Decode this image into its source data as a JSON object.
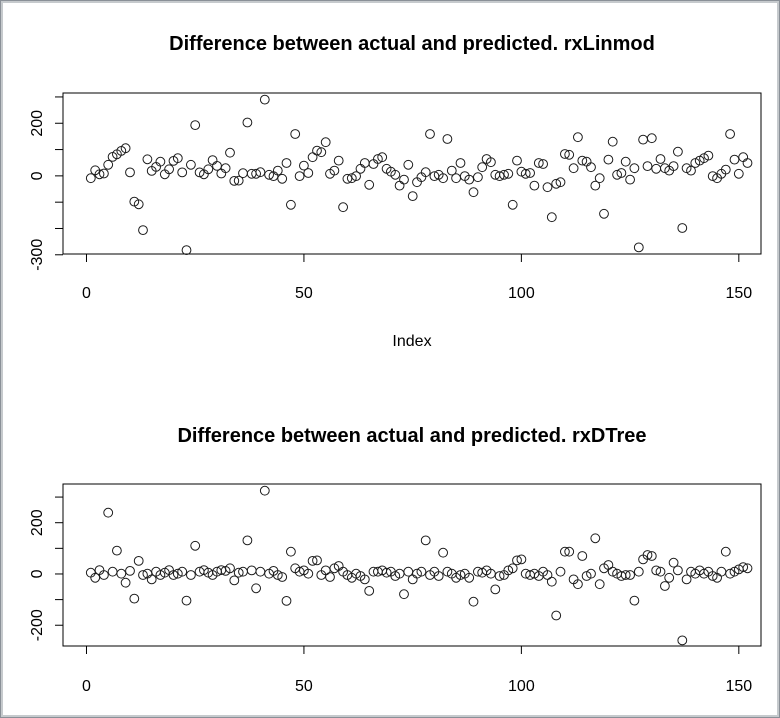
{
  "window": {
    "background": "#ffffff",
    "border_color": "#a6a6a6",
    "foreground": "#000000"
  },
  "chart_data": [
    {
      "type": "scatter",
      "title": "Difference between actual and predicted. rxLinmod",
      "xlabel": "Index",
      "ylabel": "",
      "marker": "open-circle",
      "marker_color": "#000000",
      "grid": false,
      "legend": "none",
      "xlim": [
        -5.4,
        155.1
      ],
      "ylim": [
        -297,
        315
      ],
      "x_ticks": [
        0,
        50,
        100,
        150
      ],
      "y_ticks": [
        -300,
        -200,
        -100,
        0,
        100,
        200,
        300
      ],
      "y_labeled_values": [
        -300,
        0,
        200
      ],
      "y_tick_labels_shown": [
        "-300",
        "0",
        "200"
      ],
      "x": [
        1,
        2,
        3,
        4,
        5,
        6,
        7,
        8,
        9,
        10,
        11,
        12,
        13,
        14,
        15,
        16,
        17,
        18,
        19,
        20,
        21,
        22,
        23,
        24,
        25,
        26,
        27,
        28,
        29,
        30,
        31,
        32,
        33,
        34,
        35,
        36,
        37,
        38,
        39,
        40,
        41,
        42,
        43,
        44,
        45,
        46,
        47,
        48,
        49,
        50,
        51,
        52,
        53,
        54,
        55,
        56,
        57,
        58,
        59,
        60,
        61,
        62,
        63,
        64,
        65,
        66,
        67,
        68,
        69,
        70,
        71,
        72,
        73,
        74,
        75,
        76,
        77,
        78,
        79,
        80,
        81,
        82,
        83,
        84,
        85,
        86,
        87,
        88,
        89,
        90,
        91,
        92,
        93,
        94,
        95,
        96,
        97,
        98,
        99,
        100,
        101,
        102,
        103,
        104,
        105,
        106,
        107,
        108,
        109,
        110,
        111,
        112,
        113,
        114,
        115,
        116,
        117,
        118,
        119,
        120,
        121,
        122,
        123,
        124,
        125,
        126,
        127,
        128,
        129,
        130,
        131,
        132,
        133,
        134,
        135,
        136,
        137,
        138,
        139,
        140,
        141,
        142,
        143,
        144,
        145,
        146,
        147,
        148,
        149,
        150,
        151,
        152
      ],
      "y": [
        -9,
        21,
        6,
        9,
        42,
        72,
        82,
        95,
        105,
        13,
        -98,
        -108,
        -206,
        63,
        19,
        34,
        54,
        6,
        25,
        57,
        67,
        13,
        -282,
        42,
        193,
        13,
        6,
        25,
        60,
        38,
        9,
        29,
        88,
        -19,
        -18,
        10,
        203,
        8,
        8,
        14,
        290,
        4,
        -1,
        20,
        -11,
        49,
        -110,
        159,
        -1,
        39,
        11,
        71,
        96,
        90,
        128,
        8,
        20,
        58,
        -119,
        -11,
        -9,
        -1,
        27,
        49,
        -34,
        45,
        64,
        71,
        27,
        16,
        4,
        -37,
        -14,
        42,
        -77,
        -24,
        -5,
        14,
        159,
        -1,
        4,
        -9,
        140,
        20,
        -9,
        49,
        -1,
        -14,
        -62,
        -5,
        33,
        64,
        52,
        4,
        -1,
        4,
        8,
        -110,
        58,
        16,
        8,
        11,
        -37,
        49,
        45,
        -43,
        -157,
        -30,
        -24,
        83,
        80,
        29,
        147,
        58,
        54,
        33,
        -37,
        -9,
        -144,
        62,
        130,
        4,
        11,
        54,
        -14,
        29,
        -272,
        138,
        37,
        143,
        27,
        64,
        29,
        20,
        37,
        92,
        -198,
        29,
        20,
        49,
        58,
        67,
        77,
        -1,
        -9,
        8,
        24,
        159,
        62,
        8,
        71,
        49
      ]
    },
    {
      "type": "scatter",
      "title": "Difference between actual and predicted. rxDTree",
      "xlabel": "",
      "ylabel": "",
      "marker": "open-circle",
      "marker_color": "#000000",
      "grid": false,
      "legend": "none",
      "xlim": [
        -5.4,
        155.1
      ],
      "ylim": [
        -281,
        351
      ],
      "x_ticks": [
        0,
        50,
        100,
        150
      ],
      "y_ticks": [
        -200,
        -100,
        0,
        100,
        200,
        300
      ],
      "y_labeled_values": [
        -200,
        0,
        200
      ],
      "y_tick_labels_shown": [
        "-200",
        "0",
        "200"
      ],
      "x": [
        1,
        2,
        3,
        4,
        5,
        6,
        7,
        8,
        9,
        10,
        11,
        12,
        13,
        14,
        15,
        16,
        17,
        18,
        19,
        20,
        21,
        22,
        23,
        24,
        25,
        26,
        27,
        28,
        29,
        30,
        31,
        32,
        33,
        34,
        35,
        36,
        37,
        38,
        39,
        40,
        41,
        42,
        43,
        44,
        45,
        46,
        47,
        48,
        49,
        50,
        51,
        52,
        53,
        54,
        55,
        56,
        57,
        58,
        59,
        60,
        61,
        62,
        63,
        64,
        65,
        66,
        67,
        68,
        69,
        70,
        71,
        72,
        73,
        74,
        75,
        76,
        77,
        78,
        79,
        80,
        81,
        82,
        83,
        84,
        85,
        86,
        87,
        88,
        89,
        90,
        91,
        92,
        93,
        94,
        95,
        96,
        97,
        98,
        99,
        100,
        101,
        102,
        103,
        104,
        105,
        106,
        107,
        108,
        109,
        110,
        111,
        112,
        113,
        114,
        115,
        116,
        117,
        118,
        119,
        120,
        121,
        122,
        123,
        124,
        125,
        126,
        127,
        128,
        129,
        130,
        131,
        132,
        133,
        134,
        135,
        136,
        137,
        138,
        139,
        140,
        141,
        142,
        143,
        144,
        145,
        146,
        147,
        148,
        149,
        150,
        151,
        152
      ],
      "y": [
        5,
        -15,
        15,
        -4,
        239,
        9,
        91,
        1,
        -34,
        12,
        -96,
        51,
        -4,
        1,
        -21,
        9,
        -4,
        5,
        15,
        -4,
        1,
        9,
        -104,
        -4,
        110,
        9,
        15,
        5,
        -4,
        9,
        15,
        12,
        22,
        -25,
        5,
        9,
        131,
        14,
        -56,
        9,
        325,
        1,
        12,
        -4,
        -12,
        -105,
        87,
        22,
        9,
        14,
        1,
        51,
        53,
        -4,
        14,
        -12,
        22,
        31,
        9,
        -4,
        -15,
        1,
        -8,
        -21,
        -66,
        9,
        9,
        14,
        5,
        9,
        -8,
        1,
        -79,
        9,
        -21,
        1,
        9,
        131,
        -4,
        9,
        -8,
        83,
        9,
        1,
        -15,
        -4,
        1,
        -15,
        -108,
        9,
        5,
        14,
        1,
        -60,
        -8,
        -4,
        14,
        22,
        53,
        57,
        1,
        -4,
        1,
        -8,
        9,
        -4,
        -30,
        -162,
        9,
        87,
        87,
        -21,
        -40,
        70,
        -8,
        1,
        139,
        -40,
        22,
        35,
        9,
        1,
        -8,
        -4,
        -4,
        -104,
        9,
        57,
        74,
        70,
        14,
        9,
        -47,
        -15,
        44,
        14,
        -259,
        -21,
        9,
        1,
        14,
        1,
        9,
        -8,
        -15,
        9,
        87,
        1,
        9,
        18,
        27,
        22
      ]
    }
  ]
}
